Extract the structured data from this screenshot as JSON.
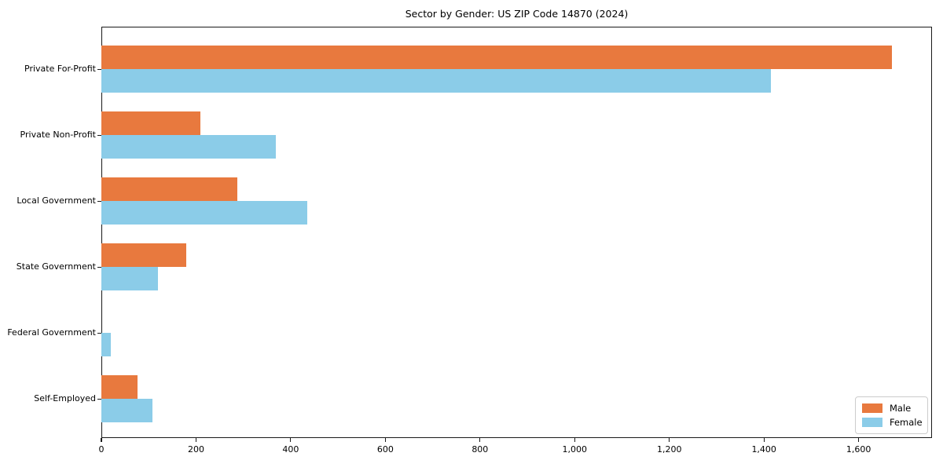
{
  "figure": {
    "title": "Sector by Gender: US ZIP Code 14870 (2024)"
  },
  "chart_data": {
    "type": "bar",
    "orientation": "horizontal",
    "title": "Sector by Gender: US ZIP Code 14870 (2024)",
    "categories": [
      "Private For-Profit",
      "Private Non-Profit",
      "Local Government",
      "State Government",
      "Federal Government",
      "Self-Employed"
    ],
    "series": [
      {
        "name": "Male",
        "color": "#E8793E",
        "values": [
          1670,
          210,
          288,
          180,
          0,
          76
        ]
      },
      {
        "name": "Female",
        "color": "#8BCCE8",
        "values": [
          1415,
          368,
          435,
          120,
          20,
          108
        ]
      }
    ],
    "xlabel": "",
    "ylabel": "",
    "xlim": [
      0,
      1755
    ],
    "xticks": [
      0,
      200,
      400,
      600,
      800,
      1000,
      1200,
      1400,
      1600
    ],
    "xtick_labels": [
      "0",
      "200",
      "400",
      "600",
      "800",
      "1,000",
      "1,200",
      "1,400",
      "1,600"
    ],
    "grid": false,
    "legend": {
      "position": "lower right",
      "entries": [
        "Male",
        "Female"
      ]
    }
  }
}
